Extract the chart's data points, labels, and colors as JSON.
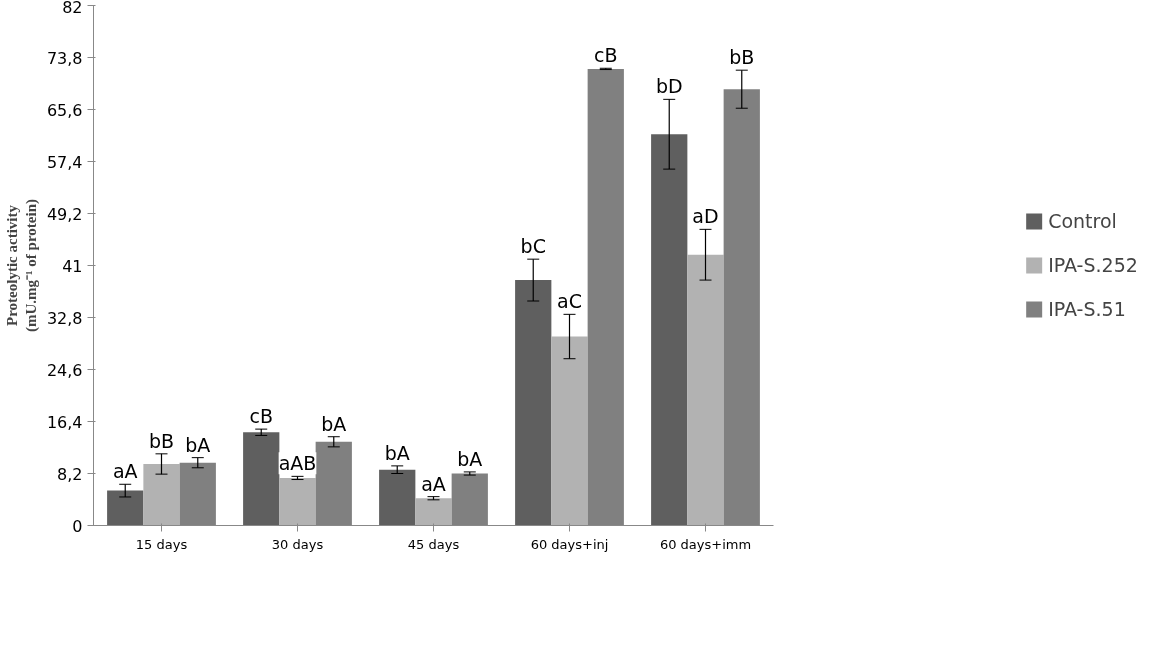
{
  "chart_data": {
    "type": "bar",
    "ylabel": "Proteolytic activity\n(mU.mg⁻¹ of protein)",
    "categories": [
      "15 days",
      "30 days",
      "45 days",
      "60 days+inj",
      "60 days+imm"
    ],
    "series": [
      {
        "name": "Control",
        "color": "#5f5f5f",
        "values": [
          5.5,
          14.7,
          8.8,
          38.7,
          61.7
        ],
        "errors": [
          1.0,
          0.5,
          0.6,
          3.3,
          5.5
        ]
      },
      {
        "name": "IPA-S.252",
        "color": "#b2b2b2",
        "values": [
          9.7,
          7.5,
          4.3,
          29.8,
          42.7
        ],
        "errors": [
          1.6,
          0.25,
          0.25,
          3.5,
          4.0
        ]
      },
      {
        "name": "IPA-S.51",
        "color": "#808080",
        "values": [
          9.9,
          13.2,
          8.2,
          72.0,
          68.8
        ],
        "errors": [
          0.8,
          0.8,
          0.25,
          0.1,
          3.0
        ]
      }
    ],
    "ylim": [
      0,
      82
    ],
    "yticks": [
      0,
      {
        "value": 8.2,
        "label": "8,2"
      },
      {
        "value": 16.4,
        "label": "16,4"
      },
      {
        "value": 24.6,
        "label": "24,6"
      },
      {
        "value": 32.8,
        "label": "32,8"
      },
      41,
      {
        "value": 49.2,
        "label": "49,2"
      },
      {
        "value": 57.4,
        "label": "57,4"
      },
      {
        "value": 65.6,
        "label": "65,6"
      },
      {
        "value": 73.8,
        "label": "73,8"
      },
      82
    ],
    "annotations": [
      "aA",
      "bB",
      "bA",
      "cB",
      "aAB",
      "bA",
      "bA",
      "aA",
      "bA",
      "bC",
      "aC",
      "cB",
      "bD",
      "aD",
      "bB"
    ],
    "grid": false,
    "legend": "right"
  }
}
